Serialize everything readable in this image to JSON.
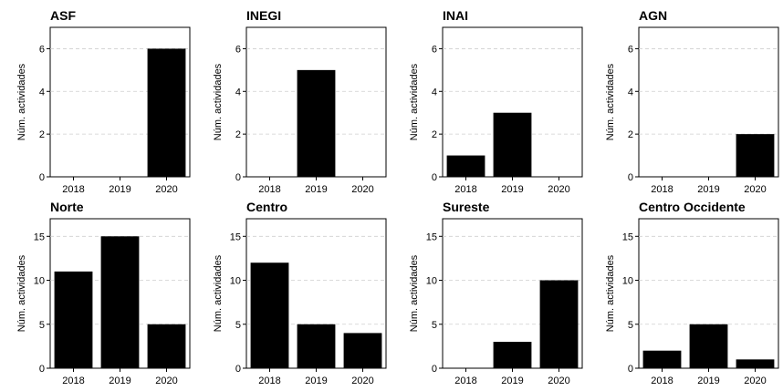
{
  "chart_data": [
    {
      "type": "bar",
      "title": "ASF",
      "categories": [
        "2018",
        "2019",
        "2020"
      ],
      "values": [
        0,
        0,
        6
      ],
      "ylabel": "Núm. actividades",
      "ylim": [
        0,
        7
      ],
      "yticks": [
        0,
        2,
        4,
        6
      ],
      "grid": true
    },
    {
      "type": "bar",
      "title": "INEGI",
      "categories": [
        "2018",
        "2019",
        "2020"
      ],
      "values": [
        0,
        5,
        0
      ],
      "ylabel": "Núm. actividades",
      "ylim": [
        0,
        7
      ],
      "yticks": [
        0,
        2,
        4,
        6
      ],
      "grid": true
    },
    {
      "type": "bar",
      "title": "INAI",
      "categories": [
        "2018",
        "2019",
        "2020"
      ],
      "values": [
        1,
        3,
        0
      ],
      "ylabel": "Núm. actividades",
      "ylim": [
        0,
        7
      ],
      "yticks": [
        0,
        2,
        4,
        6
      ],
      "grid": true
    },
    {
      "type": "bar",
      "title": "AGN",
      "categories": [
        "2018",
        "2019",
        "2020"
      ],
      "values": [
        0,
        0,
        2
      ],
      "ylabel": "Núm. actividades",
      "ylim": [
        0,
        7
      ],
      "yticks": [
        0,
        2,
        4,
        6
      ],
      "grid": true
    },
    {
      "type": "bar",
      "title": "Norte",
      "categories": [
        "2018",
        "2019",
        "2020"
      ],
      "values": [
        11,
        15,
        5
      ],
      "ylabel": "Núm. actividades",
      "ylim": [
        0,
        17
      ],
      "yticks": [
        0,
        5,
        10,
        15
      ],
      "grid": true
    },
    {
      "type": "bar",
      "title": "Centro",
      "categories": [
        "2018",
        "2019",
        "2020"
      ],
      "values": [
        12,
        5,
        4
      ],
      "ylabel": "Núm. actividades",
      "ylim": [
        0,
        17
      ],
      "yticks": [
        0,
        5,
        10,
        15
      ],
      "grid": true
    },
    {
      "type": "bar",
      "title": "Sureste",
      "categories": [
        "2018",
        "2019",
        "2020"
      ],
      "values": [
        0,
        3,
        10
      ],
      "ylabel": "Núm. actividades",
      "ylim": [
        0,
        17
      ],
      "yticks": [
        0,
        5,
        10,
        15
      ],
      "grid": true
    },
    {
      "type": "bar",
      "title": "Centro Occidente",
      "categories": [
        "2018",
        "2019",
        "2020"
      ],
      "values": [
        2,
        5,
        1
      ],
      "ylabel": "Núm. actividades",
      "ylim": [
        0,
        17
      ],
      "yticks": [
        0,
        5,
        10,
        15
      ],
      "grid": true
    }
  ]
}
